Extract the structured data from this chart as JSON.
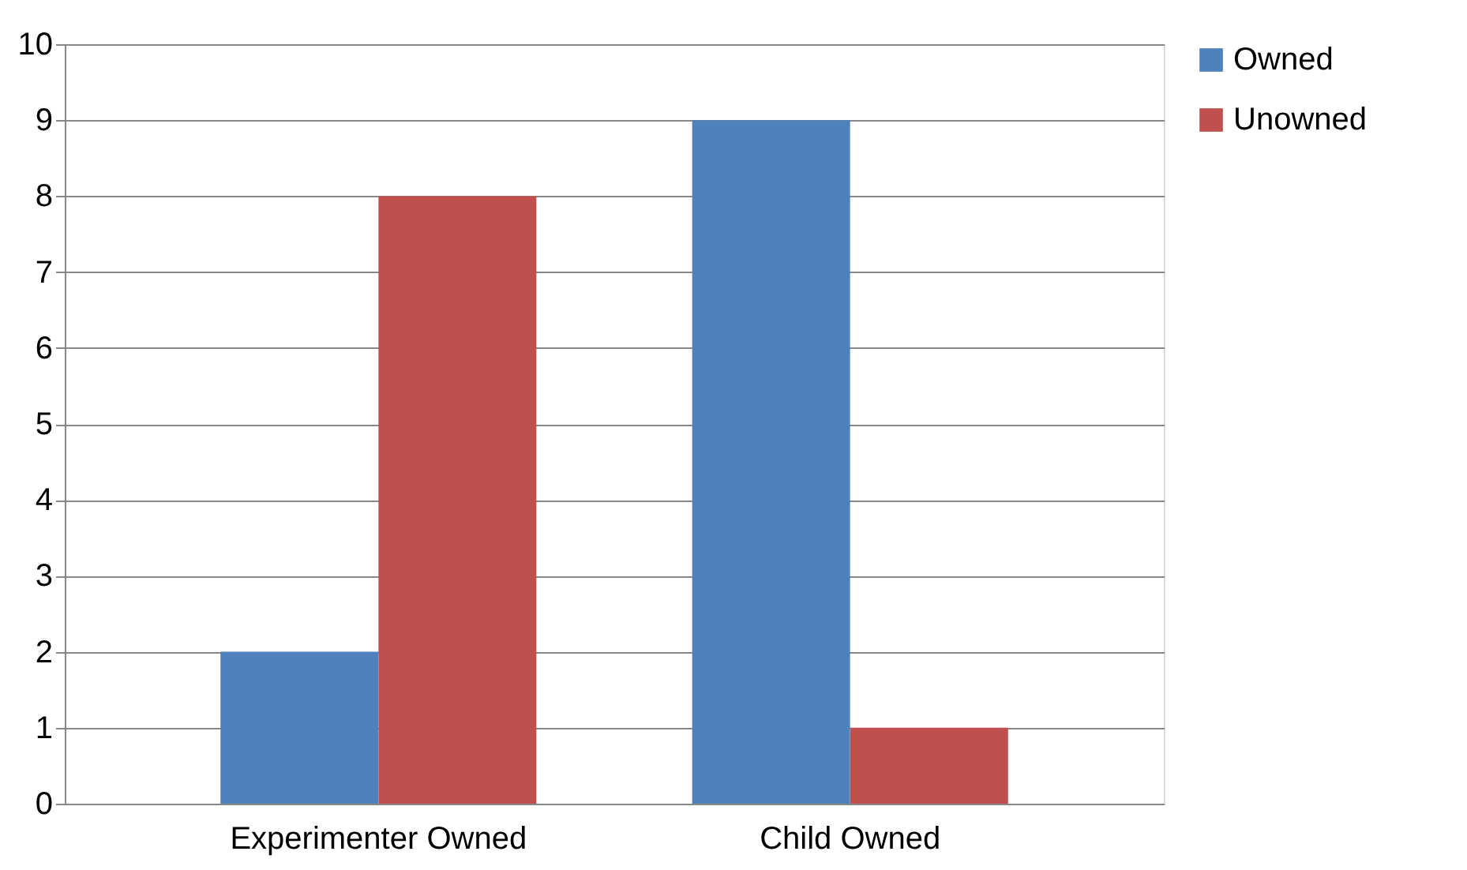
{
  "chart_data": {
    "type": "bar",
    "categories": [
      "Experimenter Owned",
      "Child Owned"
    ],
    "series": [
      {
        "name": "Owned",
        "color": "#4f81bd",
        "values": [
          2,
          9
        ]
      },
      {
        "name": "Unowned",
        "color": "#c0504d",
        "values": [
          8,
          1
        ]
      }
    ],
    "ylim": [
      0,
      10
    ],
    "yticks": [
      0,
      1,
      2,
      3,
      4,
      5,
      6,
      7,
      8,
      9,
      10
    ],
    "grid": "y",
    "legend": "right"
  }
}
